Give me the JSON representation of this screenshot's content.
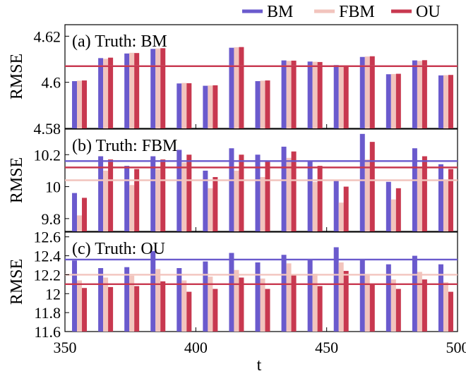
{
  "legend": {
    "position": "top-right",
    "items": [
      {
        "name": "BM",
        "color": "#6a5acd"
      },
      {
        "name": "FBM",
        "color": "#f2c4bd"
      },
      {
        "name": "OU",
        "color": "#c8384f"
      }
    ]
  },
  "xlabel": "t",
  "chart_data": [
    {
      "type": "bar",
      "title": "(a) Truth: BM",
      "ylabel": "RMSE",
      "xlim": [
        350,
        500
      ],
      "ylim": [
        4.58,
        4.625
      ],
      "xticks": [
        350,
        400,
        450,
        500
      ],
      "yticks": [
        4.58,
        4.6,
        4.62
      ],
      "ytick_labels": [
        "4.58",
        "4.6",
        "4.62"
      ],
      "x": [
        355,
        365,
        375,
        385,
        395,
        405,
        415,
        425,
        435,
        445,
        455,
        465,
        475,
        485,
        495
      ],
      "series": [
        {
          "name": "BM",
          "values": [
            4.6005,
            4.6105,
            4.6125,
            4.6145,
            4.5995,
            4.5985,
            4.615,
            4.6005,
            4.6095,
            4.609,
            4.6075,
            4.611,
            4.6035,
            4.6095,
            4.603
          ],
          "reference": 4.607
        },
        {
          "name": "FBM",
          "values": [
            4.6007,
            4.6102,
            4.6128,
            4.6147,
            4.5997,
            4.5986,
            4.6152,
            4.6007,
            4.6093,
            4.6089,
            4.6073,
            4.6112,
            4.6036,
            4.6093,
            4.6031
          ],
          "reference": 4.607
        },
        {
          "name": "OU",
          "values": [
            4.6008,
            4.6107,
            4.6127,
            4.6148,
            4.5996,
            4.5987,
            4.6153,
            4.6008,
            4.6094,
            4.6088,
            4.6074,
            4.6113,
            4.6037,
            4.6096,
            4.6032
          ],
          "reference": 4.607
        }
      ]
    },
    {
      "type": "bar",
      "title": "(b) Truth: FBM",
      "ylabel": "RMSE",
      "xlim": [
        350,
        500
      ],
      "ylim": [
        9.72,
        10.36
      ],
      "xticks": [
        350,
        400,
        450,
        500
      ],
      "yticks": [
        9.8,
        10.0,
        10.2
      ],
      "ytick_labels": [
        "9.8",
        "10",
        "10.2"
      ],
      "x": [
        355,
        365,
        375,
        385,
        395,
        405,
        415,
        425,
        435,
        445,
        455,
        465,
        475,
        485,
        495
      ],
      "series": [
        {
          "name": "BM",
          "values": [
            9.96,
            10.19,
            10.13,
            10.19,
            10.23,
            10.1,
            10.24,
            10.2,
            10.25,
            10.16,
            10.04,
            10.33,
            10.03,
            10.24,
            10.14
          ],
          "reference": 10.16
        },
        {
          "name": "FBM",
          "values": [
            9.82,
            10.1,
            10.01,
            10.11,
            10.15,
            9.99,
            10.1,
            10.06,
            10.18,
            10.03,
            9.9,
            10.17,
            9.92,
            10.12,
            10.04
          ],
          "reference": 10.04
        },
        {
          "name": "OU",
          "values": [
            9.93,
            10.17,
            10.11,
            10.17,
            10.2,
            10.06,
            10.2,
            10.16,
            10.22,
            10.13,
            10.0,
            10.28,
            9.99,
            10.19,
            10.11
          ],
          "reference": 10.12
        }
      ]
    },
    {
      "type": "bar",
      "title": "(c) Truth: OU",
      "ylabel": "RMSE",
      "xlim": [
        350,
        500
      ],
      "ylim": [
        11.6,
        12.65
      ],
      "xticks": [
        350,
        400,
        450,
        500
      ],
      "yticks": [
        11.6,
        11.8,
        12.0,
        12.2,
        12.4,
        12.6
      ],
      "ytick_labels": [
        "11.6",
        "11.8",
        "12",
        "12.2",
        "12.4",
        "12.6"
      ],
      "x": [
        355,
        365,
        375,
        385,
        395,
        405,
        415,
        425,
        435,
        445,
        455,
        465,
        475,
        485,
        495
      ],
      "series": [
        {
          "name": "BM",
          "values": [
            12.35,
            12.27,
            12.28,
            12.45,
            12.27,
            12.34,
            12.43,
            12.33,
            12.41,
            12.36,
            12.49,
            12.36,
            12.31,
            12.4,
            12.31
          ],
          "reference": 12.36
        },
        {
          "name": "FBM",
          "values": [
            12.14,
            12.17,
            12.19,
            12.26,
            12.14,
            12.18,
            12.25,
            12.16,
            12.32,
            12.21,
            12.33,
            12.2,
            12.15,
            12.23,
            12.12
          ],
          "reference": 12.2
        },
        {
          "name": "OU",
          "values": [
            12.06,
            12.07,
            12.08,
            12.13,
            12.02,
            12.05,
            12.17,
            12.05,
            12.2,
            12.08,
            12.24,
            12.1,
            12.05,
            12.15,
            12.02
          ],
          "reference": 12.1
        }
      ]
    }
  ]
}
